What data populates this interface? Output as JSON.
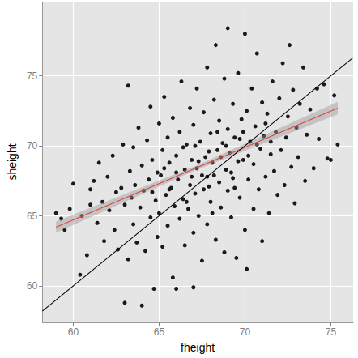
{
  "chart_data": {
    "type": "scatter",
    "xlabel": "fheight",
    "ylabel": "sheight",
    "xlim": [
      58.2,
      76.3
    ],
    "ylim": [
      57.4,
      80.3
    ],
    "xticks": [
      60,
      65,
      70,
      75
    ],
    "yticks": [
      60,
      65,
      70,
      75
    ],
    "grid": true,
    "series": [
      {
        "type": "scatter",
        "color": "#1a1a1a",
        "marker": "circle",
        "values": [
          [
            59.0,
            65.2
          ],
          [
            59.3,
            64.8
          ],
          [
            59.5,
            64.0
          ],
          [
            59.8,
            65.5
          ],
          [
            60.0,
            67.3
          ],
          [
            60.4,
            60.8
          ],
          [
            60.5,
            65.0
          ],
          [
            60.8,
            62.2
          ],
          [
            61.0,
            65.8
          ],
          [
            61.0,
            66.9
          ],
          [
            61.2,
            67.5
          ],
          [
            61.4,
            64.5
          ],
          [
            61.5,
            68.8
          ],
          [
            61.7,
            66.0
          ],
          [
            61.8,
            63.2
          ],
          [
            62.0,
            67.8
          ],
          [
            62.1,
            65.4
          ],
          [
            62.3,
            69.3
          ],
          [
            62.4,
            64.0
          ],
          [
            62.5,
            66.7
          ],
          [
            62.6,
            62.6
          ],
          [
            62.8,
            67.0
          ],
          [
            62.9,
            70.1
          ],
          [
            63.0,
            58.8
          ],
          [
            63.0,
            65.8
          ],
          [
            63.2,
            74.3
          ],
          [
            63.2,
            61.9
          ],
          [
            63.3,
            68.2
          ],
          [
            63.4,
            66.3
          ],
          [
            63.5,
            64.4
          ],
          [
            63.5,
            69.9
          ],
          [
            63.6,
            67.2
          ],
          [
            63.7,
            63.1
          ],
          [
            63.8,
            71.3
          ],
          [
            63.9,
            65.6
          ],
          [
            64.0,
            58.6
          ],
          [
            64.0,
            68.6
          ],
          [
            64.1,
            66.8
          ],
          [
            64.2,
            62.5
          ],
          [
            64.3,
            70.4
          ],
          [
            64.4,
            67.6
          ],
          [
            64.5,
            64.9
          ],
          [
            64.5,
            72.8
          ],
          [
            64.6,
            69.0
          ],
          [
            64.7,
            59.8
          ],
          [
            64.8,
            66.1
          ],
          [
            64.9,
            68.1
          ],
          [
            64.9,
            63.5
          ],
          [
            65.0,
            71.6
          ],
          [
            65.0,
            65.2
          ],
          [
            65.1,
            67.9
          ],
          [
            65.2,
            69.7
          ],
          [
            65.2,
            62.8
          ],
          [
            65.3,
            73.5
          ],
          [
            65.4,
            66.5
          ],
          [
            65.5,
            70.6
          ],
          [
            65.5,
            64.3
          ],
          [
            65.6,
            68.8
          ],
          [
            65.7,
            67.0
          ],
          [
            65.8,
            72.0
          ],
          [
            65.8,
            60.6
          ],
          [
            65.9,
            65.7
          ],
          [
            66.0,
            59.8
          ],
          [
            66.0,
            69.3
          ],
          [
            66.1,
            67.6
          ],
          [
            66.2,
            71.0
          ],
          [
            66.2,
            64.8
          ],
          [
            66.3,
            74.6
          ],
          [
            66.4,
            66.2
          ],
          [
            66.5,
            68.3
          ],
          [
            66.5,
            62.9
          ],
          [
            66.6,
            70.1
          ],
          [
            66.7,
            65.5
          ],
          [
            66.8,
            72.7
          ],
          [
            66.8,
            67.2
          ],
          [
            66.9,
            69.0
          ],
          [
            67.0,
            59.9
          ],
          [
            67.0,
            63.8
          ],
          [
            67.0,
            71.5
          ],
          [
            67.1,
            66.6
          ],
          [
            67.2,
            68.4
          ],
          [
            67.2,
            74.1
          ],
          [
            67.3,
            65.0
          ],
          [
            67.4,
            70.3
          ],
          [
            67.5,
            67.9
          ],
          [
            67.5,
            61.8
          ],
          [
            67.6,
            72.4
          ],
          [
            67.7,
            69.2
          ],
          [
            67.8,
            64.4
          ],
          [
            67.8,
            75.6
          ],
          [
            67.9,
            67.1
          ],
          [
            68.0,
            70.9
          ],
          [
            68.0,
            66.0
          ],
          [
            68.1,
            68.8
          ],
          [
            68.2,
            73.3
          ],
          [
            68.3,
            77.2
          ],
          [
            68.3,
            63.3
          ],
          [
            68.4,
            69.7
          ],
          [
            68.5,
            67.4
          ],
          [
            68.5,
            71.8
          ],
          [
            68.6,
            65.6
          ],
          [
            68.7,
            70.2
          ],
          [
            68.8,
            74.8
          ],
          [
            68.8,
            62.4
          ],
          [
            68.9,
            68.3
          ],
          [
            69.0,
            78.4
          ],
          [
            69.0,
            66.8
          ],
          [
            69.0,
            71.2
          ],
          [
            69.1,
            69.5
          ],
          [
            69.2,
            64.9
          ],
          [
            69.3,
            73.0
          ],
          [
            69.3,
            67.7
          ],
          [
            69.4,
            70.6
          ],
          [
            69.5,
            62.0
          ],
          [
            69.6,
            68.9
          ],
          [
            69.6,
            75.2
          ],
          [
            69.7,
            66.3
          ],
          [
            69.8,
            71.9
          ],
          [
            69.9,
            69.0
          ],
          [
            70.0,
            78.0
          ],
          [
            70.0,
            64.0
          ],
          [
            70.1,
            61.2
          ],
          [
            70.1,
            72.5
          ],
          [
            70.2,
            67.6
          ],
          [
            70.3,
            70.3
          ],
          [
            70.4,
            74.1
          ],
          [
            70.5,
            65.5
          ],
          [
            70.5,
            68.7
          ],
          [
            70.6,
            71.4
          ],
          [
            70.7,
            76.6
          ],
          [
            70.8,
            66.9
          ],
          [
            70.9,
            69.8
          ],
          [
            71.0,
            73.1
          ],
          [
            71.0,
            63.2
          ],
          [
            71.1,
            70.7
          ],
          [
            71.2,
            67.8
          ],
          [
            71.3,
            72.3
          ],
          [
            71.4,
            65.2
          ],
          [
            71.5,
            69.4
          ],
          [
            71.6,
            74.6
          ],
          [
            71.7,
            68.2
          ],
          [
            71.8,
            71.0
          ],
          [
            71.9,
            66.5
          ],
          [
            72.0,
            73.4
          ],
          [
            72.1,
            69.7
          ],
          [
            72.2,
            75.9
          ],
          [
            72.3,
            67.2
          ],
          [
            72.4,
            70.6
          ],
          [
            72.5,
            72.1
          ],
          [
            72.6,
            77.2
          ],
          [
            72.7,
            68.5
          ],
          [
            72.8,
            74.0
          ],
          [
            72.9,
            65.9
          ],
          [
            73.0,
            71.3
          ],
          [
            73.1,
            69.2
          ],
          [
            73.2,
            73.0
          ],
          [
            73.4,
            75.6
          ],
          [
            73.5,
            67.5
          ],
          [
            73.6,
            70.8
          ],
          [
            73.8,
            72.6
          ],
          [
            74.0,
            68.4
          ],
          [
            74.2,
            74.1
          ],
          [
            74.3,
            70.5
          ],
          [
            74.6,
            74.4
          ],
          [
            74.8,
            69.1
          ],
          [
            75.0,
            69.0
          ],
          [
            75.2,
            73.6
          ],
          [
            75.4,
            70.1
          ],
          [
            66.4,
            69.9
          ],
          [
            67.1,
            70.0
          ],
          [
            67.6,
            66.9
          ],
          [
            68.2,
            67.9
          ],
          [
            68.6,
            69.2
          ],
          [
            69.2,
            68.1
          ],
          [
            69.7,
            70.5
          ],
          [
            66.9,
            67.8
          ],
          [
            67.9,
            69.6
          ],
          [
            68.4,
            71.0
          ],
          [
            70.2,
            69.3
          ],
          [
            65.6,
            66.9
          ],
          [
            66.0,
            68.1
          ],
          [
            67.3,
            68.9
          ],
          [
            68.9,
            70.0
          ],
          [
            69.4,
            67.0
          ],
          [
            70.7,
            70.1
          ],
          [
            71.2,
            71.6
          ],
          [
            65.3,
            68.4
          ],
          [
            64.6,
            66.7
          ],
          [
            67.8,
            67.8
          ],
          [
            68.1,
            65.2
          ],
          [
            66.6,
            66.0
          ],
          [
            69.9,
            71.0
          ],
          [
            71.5,
            70.3
          ]
        ]
      },
      {
        "type": "line",
        "color": "#e0453a",
        "line_style": "solid",
        "values": [
          [
            59.0,
            64.2
          ],
          [
            67.2,
            68.44
          ],
          [
            75.4,
            72.7
          ]
        ],
        "lower": [
          63.8,
          68.3,
          72.25
        ],
        "upper": [
          64.6,
          68.6,
          73.15
        ]
      },
      {
        "type": "line",
        "color": "#000000",
        "line_style": "solid",
        "values": [
          [
            58.2,
            58.2
          ],
          [
            76.3,
            76.3
          ]
        ]
      }
    ]
  }
}
